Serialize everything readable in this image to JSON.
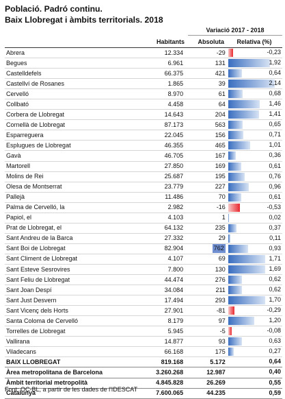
{
  "title": {
    "line1": "Població. Padró continu.",
    "line2": "Baix Llobregat i àmbits territorials. 2018"
  },
  "header": {
    "variacio": "Variació 2017 - 2018",
    "habitants": "Habitants",
    "absoluta": "Absoluta",
    "relativa": "Relativa (%)"
  },
  "colors": {
    "positive_bar": "#3a6ec0",
    "negative_bar": "#e8282e",
    "highlight": "#6f8fd0"
  },
  "rows": [
    {
      "name": "Abrera",
      "habitants": "12.334",
      "absoluta": "-29",
      "relativa": "-0,23",
      "rel_value": -0.23
    },
    {
      "name": "Begues",
      "habitants": "6.961",
      "absoluta": "131",
      "relativa": "1,92",
      "rel_value": 1.92
    },
    {
      "name": "Castelldefels",
      "habitants": "66.375",
      "absoluta": "421",
      "relativa": "0,64",
      "rel_value": 0.64
    },
    {
      "name": "Castellví de Rosanes",
      "habitants": "1.865",
      "absoluta": "39",
      "relativa": "2,14",
      "rel_value": 2.14
    },
    {
      "name": "Cervelló",
      "habitants": "8.970",
      "absoluta": "61",
      "relativa": "0,68",
      "rel_value": 0.68
    },
    {
      "name": "Collbató",
      "habitants": "4.458",
      "absoluta": "64",
      "relativa": "1,46",
      "rel_value": 1.46
    },
    {
      "name": "Corbera de Llobregat",
      "habitants": "14.643",
      "absoluta": "204",
      "relativa": "1,41",
      "rel_value": 1.41
    },
    {
      "name": "Cornellà de Llobregat",
      "habitants": "87.173",
      "absoluta": "563",
      "relativa": "0,65",
      "rel_value": 0.65
    },
    {
      "name": "Esparreguera",
      "habitants": "22.045",
      "absoluta": "156",
      "relativa": "0,71",
      "rel_value": 0.71
    },
    {
      "name": "Esplugues de Llobregat",
      "habitants": "46.355",
      "absoluta": "465",
      "relativa": "1,01",
      "rel_value": 1.01
    },
    {
      "name": "Gavà",
      "habitants": "46.705",
      "absoluta": "167",
      "relativa": "0,36",
      "rel_value": 0.36
    },
    {
      "name": "Martorell",
      "habitants": "27.850",
      "absoluta": "169",
      "relativa": "0,61",
      "rel_value": 0.61
    },
    {
      "name": "Molins de Rei",
      "habitants": "25.687",
      "absoluta": "195",
      "relativa": "0,76",
      "rel_value": 0.76
    },
    {
      "name": "Olesa de Montserrat",
      "habitants": "23.779",
      "absoluta": "227",
      "relativa": "0,96",
      "rel_value": 0.96
    },
    {
      "name": "Pallejà",
      "habitants": "11.486",
      "absoluta": "70",
      "relativa": "0,61",
      "rel_value": 0.61
    },
    {
      "name": "Palma de Cervelló, la",
      "habitants": "2.982",
      "absoluta": "-16",
      "relativa": "-0,53",
      "rel_value": -0.53
    },
    {
      "name": "Papiol, el",
      "habitants": "4.103",
      "absoluta": "1",
      "relativa": "0,02",
      "rel_value": 0.02
    },
    {
      "name": "Prat de Llobregat, el",
      "habitants": "64.132",
      "absoluta": "235",
      "relativa": "0,37",
      "rel_value": 0.37
    },
    {
      "name": "Sant Andreu de la Barca",
      "habitants": "27.332",
      "absoluta": "29",
      "relativa": "0,11",
      "rel_value": 0.11
    },
    {
      "name": "Sant Boi de Llobregat",
      "habitants": "82.904",
      "absoluta": "762",
      "relativa": "0,93",
      "rel_value": 0.93,
      "abs_highlight": true
    },
    {
      "name": "Sant Climent de Llobregat",
      "habitants": "4.107",
      "absoluta": "69",
      "relativa": "1,71",
      "rel_value": 1.71
    },
    {
      "name": "Sant Esteve Sesrovires",
      "habitants": "7.800",
      "absoluta": "130",
      "relativa": "1,69",
      "rel_value": 1.69
    },
    {
      "name": "Sant Feliu de Llobregat",
      "habitants": "44.474",
      "absoluta": "276",
      "relativa": "0,62",
      "rel_value": 0.62
    },
    {
      "name": "Sant Joan Despí",
      "habitants": "34.084",
      "absoluta": "211",
      "relativa": "0,62",
      "rel_value": 0.62
    },
    {
      "name": "Sant Just Desvern",
      "habitants": "17.494",
      "absoluta": "293",
      "relativa": "1,70",
      "rel_value": 1.7
    },
    {
      "name": "Sant Vicenç dels Horts",
      "habitants": "27.901",
      "absoluta": "-81",
      "relativa": "-0,29",
      "rel_value": -0.29
    },
    {
      "name": "Santa Coloma de Cervelló",
      "habitants": "8.179",
      "absoluta": "97",
      "relativa": "1,20",
      "rel_value": 1.2
    },
    {
      "name": "Torrelles de Llobregat",
      "habitants": "5.945",
      "absoluta": "-5",
      "relativa": "-0,08",
      "rel_value": -0.08
    },
    {
      "name": "Vallirana",
      "habitants": "14.877",
      "absoluta": "93",
      "relativa": "0,63",
      "rel_value": 0.63
    },
    {
      "name": "Viladecans",
      "habitants": "66.168",
      "absoluta": "175",
      "relativa": "0,27",
      "rel_value": 0.27
    }
  ],
  "summary": [
    {
      "name": "BAIX LLOBREGAT",
      "habitants": "819.168",
      "absoluta": "5.172",
      "relativa": "0,64",
      "rel_value": 0.64
    },
    {
      "name": "Àrea metropolitana de Barcelona",
      "habitants": "3.260.268",
      "absoluta": "12.987",
      "relativa": "0,40",
      "rel_value": 0.4
    },
    {
      "name": "Àmbit territorial metropolità",
      "habitants": "4.845.828",
      "absoluta": "26.269",
      "relativa": "0,55",
      "rel_value": 0.55
    },
    {
      "name": "Catalunya",
      "habitants": "7.600.065",
      "absoluta": "44.235",
      "relativa": "0,59",
      "rel_value": 0.59
    }
  ],
  "footer": "Font: OC-BL, a partir de les dades de l'IDESCAT"
}
